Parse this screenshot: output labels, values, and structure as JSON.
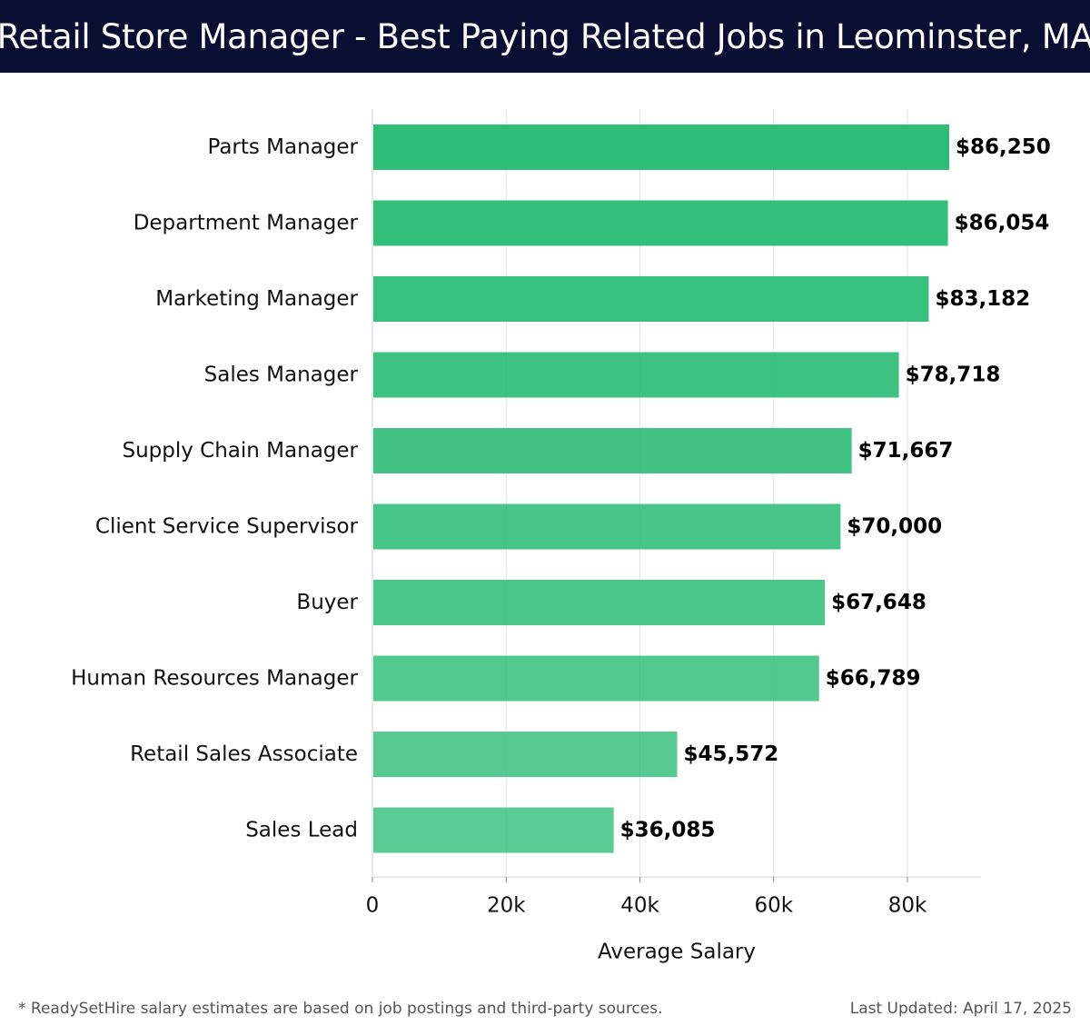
{
  "header": {
    "title": "Retail Store Manager - Best Paying Related Jobs in Leominster, MA"
  },
  "chart_data": {
    "type": "bar",
    "orientation": "horizontal",
    "title": "Retail Store Manager - Best Paying Related Jobs in Leominster, MA",
    "xlabel": "Average Salary",
    "ylabel": "",
    "xlim": [
      0,
      91000
    ],
    "xticks": [
      0,
      20000,
      40000,
      60000,
      80000
    ],
    "xtick_labels": [
      "0",
      "20k",
      "40k",
      "60k",
      "80k"
    ],
    "grid": "vertical",
    "categories": [
      "Parts Manager",
      "Department Manager",
      "Marketing Manager",
      "Sales Manager",
      "Supply Chain Manager",
      "Client Service Supervisor",
      "Buyer",
      "Human Resources Manager",
      "Retail Sales Associate",
      "Sales Lead"
    ],
    "values": [
      86250,
      86054,
      83182,
      78718,
      71667,
      70000,
      67648,
      66789,
      45572,
      36085
    ],
    "value_labels": [
      "$86,250",
      "$86,054",
      "$83,182",
      "$78,718",
      "$71,667",
      "$70,000",
      "$67,648",
      "$66,789",
      "$45,572",
      "$36,085"
    ],
    "bar_color": "#2dbd77"
  },
  "footer": {
    "note": "* ReadySetHire salary estimates are based on job postings and third-party sources.",
    "updated": "Last Updated: April 17, 2025"
  }
}
